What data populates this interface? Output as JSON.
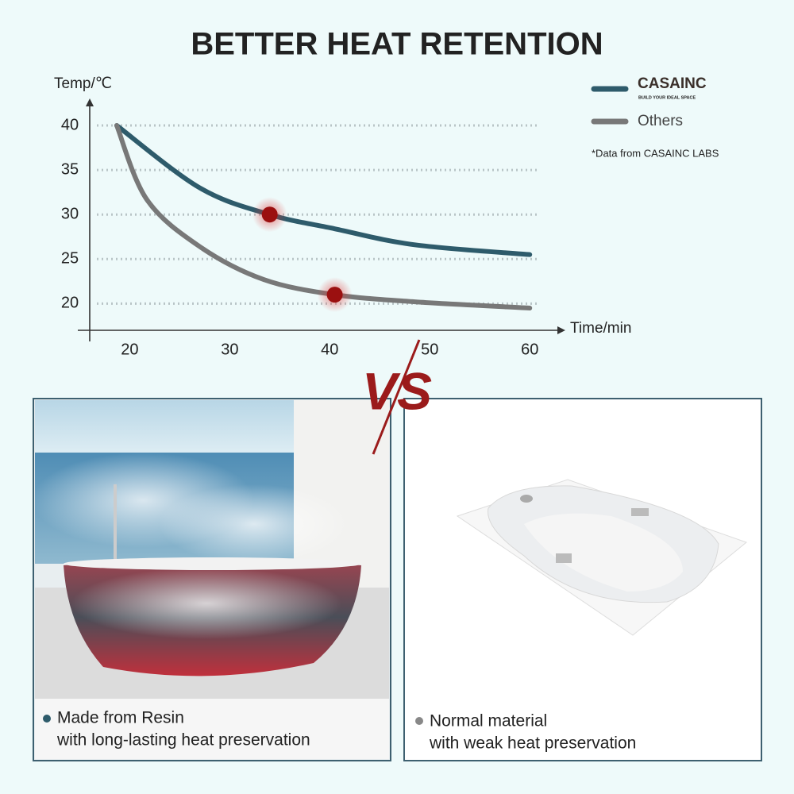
{
  "chart_data": {
    "type": "line",
    "title": "BETTER HEAT RETENTION",
    "y_label": "Temp/℃",
    "x_label": "Time/min",
    "xlim": [
      16,
      63
    ],
    "ylim": [
      17,
      42.5
    ],
    "xticks": [
      20,
      30,
      40,
      50,
      60
    ],
    "yticks": [
      20,
      25,
      30,
      35,
      40
    ],
    "grid": true,
    "brand_tagline": "BUILD YOUR IDEAL SPACE",
    "note": "*Data from CASAINC LABS",
    "series": [
      {
        "name": "CASAINC",
        "color": "#2e5b6b",
        "x": [
          18.7,
          27,
          34,
          40.5,
          48.5,
          60
        ],
        "values": [
          40,
          33,
          30,
          28.4,
          26.6,
          25.5
        ],
        "highlight": 2
      },
      {
        "name": "Others",
        "color": "#787878",
        "x": [
          18.7,
          21.7,
          27,
          33.4,
          40.5,
          48.5,
          60
        ],
        "values": [
          40,
          31.7,
          26.4,
          22.7,
          21,
          20.2,
          19.5
        ],
        "highlight": 4
      }
    ]
  },
  "comparison": {
    "vs": "VS",
    "left": {
      "lines": [
        "Made from Resin",
        "with long-lasting heat preservation"
      ]
    },
    "right": {
      "lines": [
        "Normal material",
        "with weak heat preservation"
      ]
    }
  }
}
